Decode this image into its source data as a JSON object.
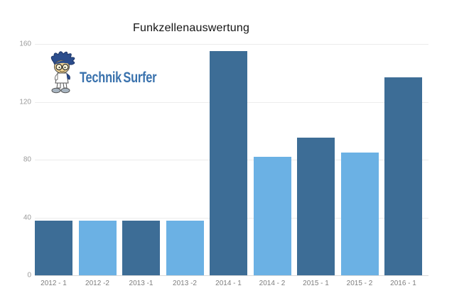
{
  "page": {
    "background": "#ffffff"
  },
  "header": {
    "title": "Funkzellenauswertung"
  },
  "logo": {
    "brand_first": "Technik",
    "brand_second": "Surfer",
    "text_color": "#3a72ad",
    "mascot": "surfer-boy-mascot"
  },
  "colors": {
    "bar_dark": "#3d6d96",
    "bar_light": "#6bb1e4",
    "grid": "#ececec",
    "grid_baseline": "#d9d9d9",
    "y_tick_label": "#9a9a9a",
    "x_tick_label": "#7d7d7d",
    "title_text": "#141414"
  },
  "chart_data": {
    "type": "bar",
    "title": "Funkzellenauswertung",
    "categories": [
      "2012 - 1",
      "2012 -2",
      "2013 -1",
      "2013 -2",
      "2014 - 1",
      "2014 - 2",
      "2015 - 1",
      "2015 - 2",
      "2016 - 1"
    ],
    "values": [
      38,
      38,
      38,
      38,
      155,
      82,
      95,
      85,
      137
    ],
    "bar_colors": [
      "#3d6d96",
      "#6bb1e4",
      "#3d6d96",
      "#6bb1e4",
      "#3d6d96",
      "#6bb1e4",
      "#3d6d96",
      "#6bb1e4",
      "#3d6d96"
    ],
    "xlabel": "",
    "ylabel": "",
    "ylim": [
      0,
      160
    ],
    "yticks": [
      0,
      40,
      80,
      120,
      160
    ],
    "grid": "horizontal",
    "legend": "none"
  }
}
